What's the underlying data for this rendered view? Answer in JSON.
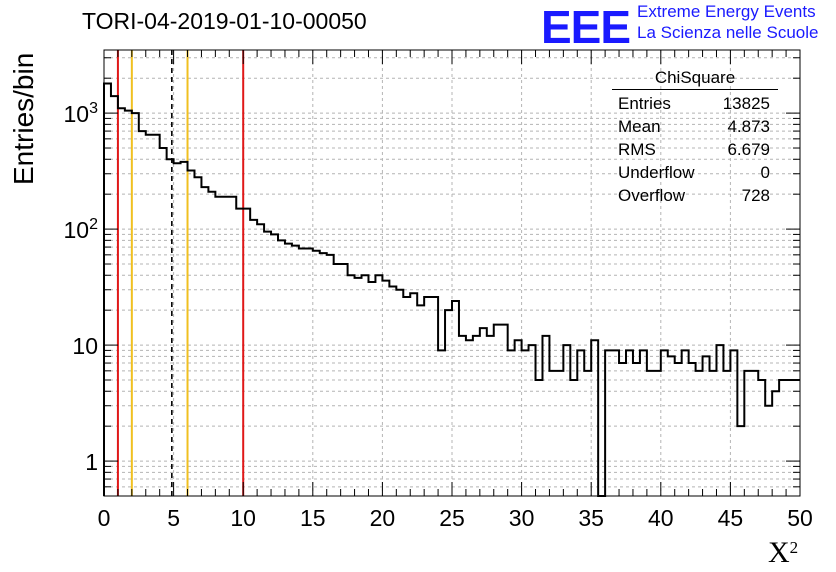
{
  "header": {
    "title": "TORI-04-2019-01-10-00050"
  },
  "logo": {
    "mark": "EEE",
    "line1": "Extreme Energy Events",
    "line2": "La Scienza nelle Scuole"
  },
  "stats_box": {
    "name": "ChiSquare",
    "rows": [
      {
        "label": "Entries",
        "value": "13825"
      },
      {
        "label": "Mean",
        "value": "4.873"
      },
      {
        "label": "RMS",
        "value": "6.679"
      },
      {
        "label": "Underflow",
        "value": "0"
      },
      {
        "label": "Overflow",
        "value": "728"
      }
    ]
  },
  "chart_data": {
    "type": "histogram",
    "title": "TORI-04-2019-01-10-00050",
    "xlabel": "X",
    "xlabel_superscript": "2",
    "ylabel": "Entries/bin",
    "xlim": [
      0,
      50
    ],
    "ylim": [
      0.5,
      3500
    ],
    "yscale": "log",
    "grid": true,
    "bin_width": 0.5,
    "x_ticks": [
      "0",
      "5",
      "10",
      "15",
      "20",
      "25",
      "30",
      "35",
      "40",
      "45",
      "50"
    ],
    "y_ticks": [
      {
        "label": "1",
        "value": 1
      },
      {
        "label": "10",
        "value": 10
      },
      {
        "label": "10",
        "sup": "2",
        "value": 100
      },
      {
        "label": "10",
        "sup": "3",
        "value": 1000
      }
    ],
    "bin_values": [
      1800,
      1400,
      1100,
      1050,
      1000,
      700,
      650,
      650,
      500,
      400,
      370,
      380,
      320,
      280,
      230,
      210,
      190,
      190,
      190,
      150,
      150,
      120,
      110,
      95,
      90,
      80,
      75,
      72,
      68,
      68,
      65,
      62,
      60,
      50,
      50,
      40,
      38,
      40,
      35,
      40,
      36,
      32,
      30,
      26,
      28,
      22,
      26,
      26,
      9,
      20,
      24,
      12,
      11,
      12,
      14,
      12,
      15,
      15,
      9,
      11,
      9,
      10,
      5,
      12,
      6,
      6,
      10,
      5,
      9,
      6,
      11,
      0.3,
      9,
      9,
      7,
      9,
      7,
      9,
      6,
      6,
      9,
      8,
      7,
      9,
      7,
      6,
      8,
      6,
      10,
      6,
      9,
      2,
      6,
      6,
      5,
      3,
      4,
      5,
      5,
      5
    ],
    "vertical_lines": [
      {
        "x": 1,
        "color": "#e01818",
        "style": "solid"
      },
      {
        "x": 2,
        "color": "#f0c020",
        "style": "solid"
      },
      {
        "x": 4.873,
        "color": "#000000",
        "style": "dashed"
      },
      {
        "x": 6,
        "color": "#f0c020",
        "style": "solid"
      },
      {
        "x": 10,
        "color": "#e01818",
        "style": "solid"
      }
    ]
  }
}
